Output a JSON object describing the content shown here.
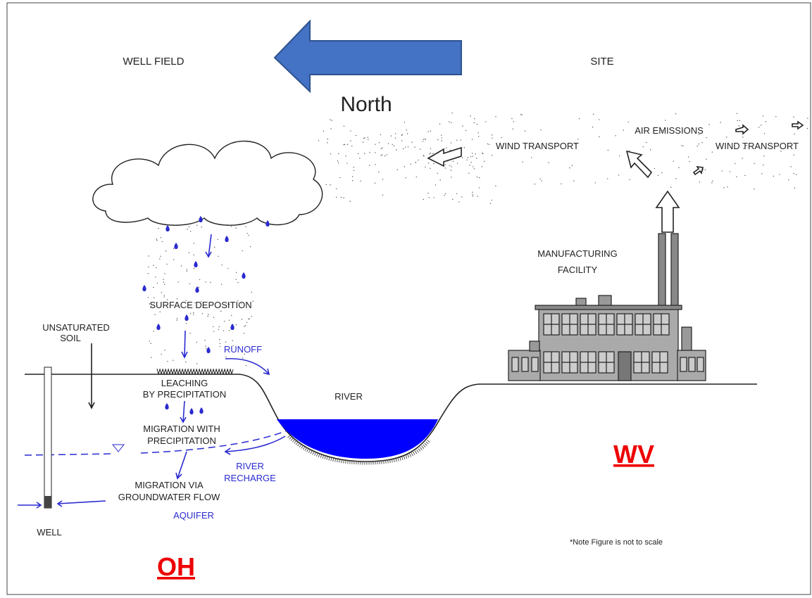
{
  "header": {
    "well_field": "WELL FIELD",
    "site": "SITE",
    "direction": "North"
  },
  "labels": {
    "air_emissions": "AIR EMISSIONS",
    "wind_transport_left": "WIND TRANSPORT",
    "wind_transport_right": "WIND TRANSPORT",
    "manufacturing_facility": [
      "MANUFACTURING",
      "FACILITY"
    ],
    "surface_deposition": "SURFACE DEPOSITION",
    "unsaturated_soil": [
      "UNSATURATED",
      "SOIL"
    ],
    "runoff": "RUNOFF",
    "leaching": [
      "LEACHING",
      "BY PRECIPITATION"
    ],
    "river": "RIVER",
    "migration_precipitation": [
      "MIGRATION WITH",
      "PRECIPITATION"
    ],
    "river_recharge": [
      "RIVER",
      "RECHARGE"
    ],
    "migration_groundwater": [
      "MIGRATION VIA",
      "GROUNDWATER FLOW"
    ],
    "aquifer": "AQUIFER",
    "well": "WELL",
    "note": "*Note Figure is not to scale"
  },
  "states": {
    "west": "OH",
    "east": "WV"
  }
}
